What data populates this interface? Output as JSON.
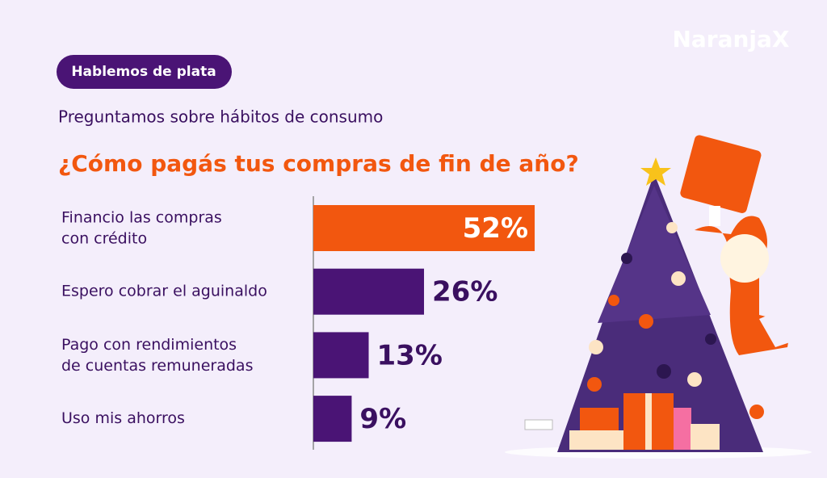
{
  "brand": "NaranjaX",
  "badge": "Hablemos de plata",
  "chart_data": {
    "type": "bar",
    "orientation": "horizontal",
    "subtitle": "Preguntamos sobre hábitos de consumo",
    "title": "¿Cómo pagás tus compras de fin de año?",
    "categories": [
      "Financio las compras\ncon crédito",
      "Espero cobrar el aguinaldo",
      "Pago con rendimientos\nde cuentas remuneradas",
      "Uso mis ahorros"
    ],
    "values": [
      52,
      26,
      13,
      9
    ],
    "value_labels": [
      "52%",
      "26%",
      "13%",
      "9%"
    ],
    "colors": [
      "#f2570f",
      "#4a1475",
      "#4a1475",
      "#4a1475"
    ]
  }
}
